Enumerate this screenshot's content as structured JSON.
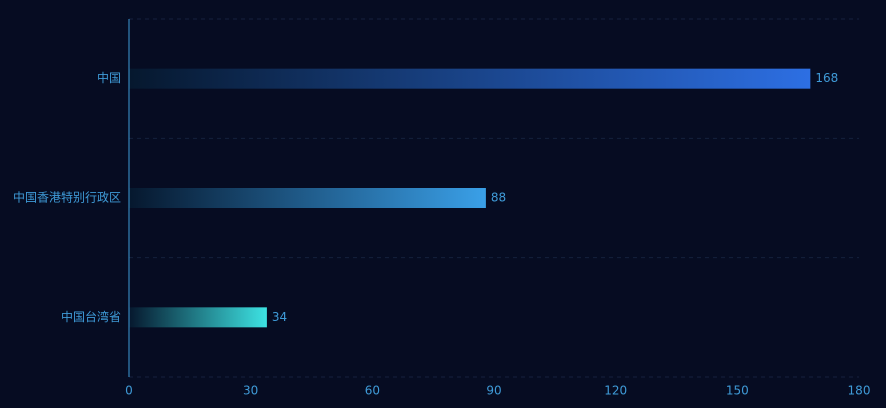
{
  "chart_data": {
    "type": "bar",
    "orientation": "horizontal",
    "categories": [
      "中国",
      "中国香港特别行政区",
      "中国台湾省"
    ],
    "values": [
      168,
      88,
      34
    ],
    "value_labels": [
      "168",
      "88",
      "34"
    ],
    "xlim": [
      0,
      180
    ],
    "x_ticks": [
      0,
      30,
      60,
      90,
      120,
      150,
      180
    ],
    "x_tick_labels": [
      "0",
      "30",
      "60",
      "90",
      "120",
      "150",
      "180"
    ],
    "grid": true,
    "colors": {
      "background": "#060c22",
      "axis_line": "#3f9bd8",
      "grid_line": "#15213d",
      "label_text": "#3f9bd8",
      "bar_gradients": [
        {
          "start": "#06182e",
          "end": "#2d6fe3"
        },
        {
          "start": "#06182e",
          "end": "#3aa0e8"
        },
        {
          "start": "#06182e",
          "end": "#3de3e3"
        }
      ]
    }
  }
}
